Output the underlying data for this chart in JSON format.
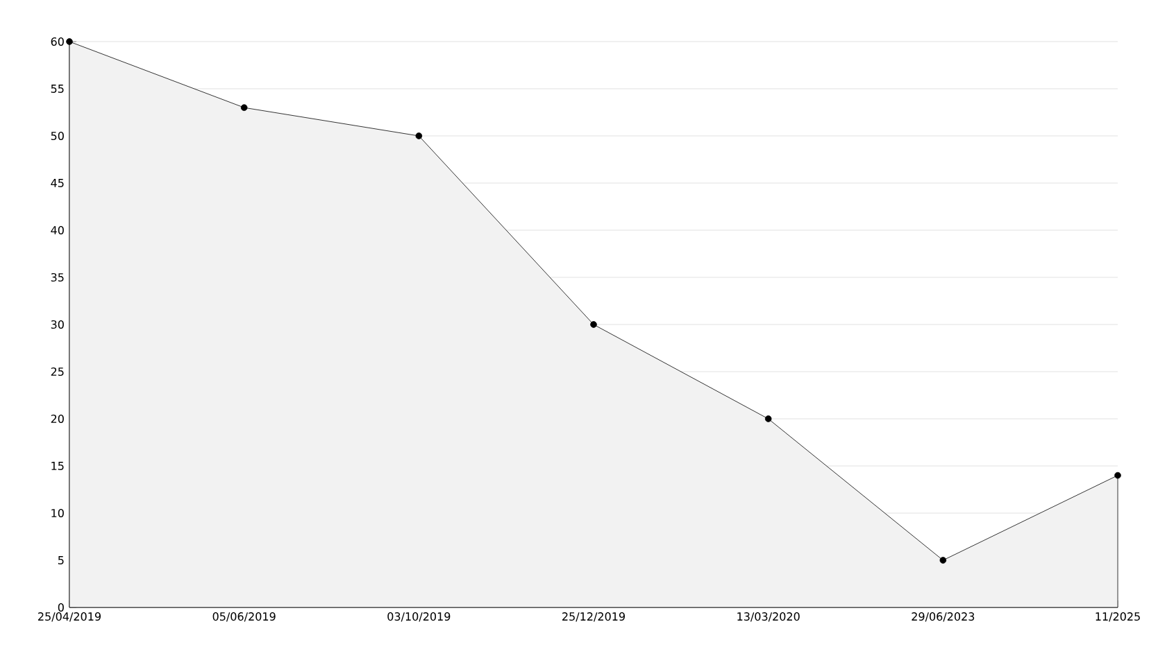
{
  "chart_data": {
    "type": "area",
    "categories": [
      "25/04/2019",
      "05/06/2019",
      "03/10/2019",
      "25/12/2019",
      "13/03/2020",
      "29/06/2023",
      "11/2025"
    ],
    "values": [
      60,
      53,
      50,
      30,
      20,
      5,
      14
    ],
    "color": "#f2f2f2",
    "ylim": [
      0,
      60
    ],
    "yticks": [
      0,
      5,
      10,
      15,
      20,
      25,
      30,
      35,
      40,
      45,
      50,
      55,
      60
    ],
    "grid": "y",
    "marker": "circle",
    "line_style": "solid"
  }
}
